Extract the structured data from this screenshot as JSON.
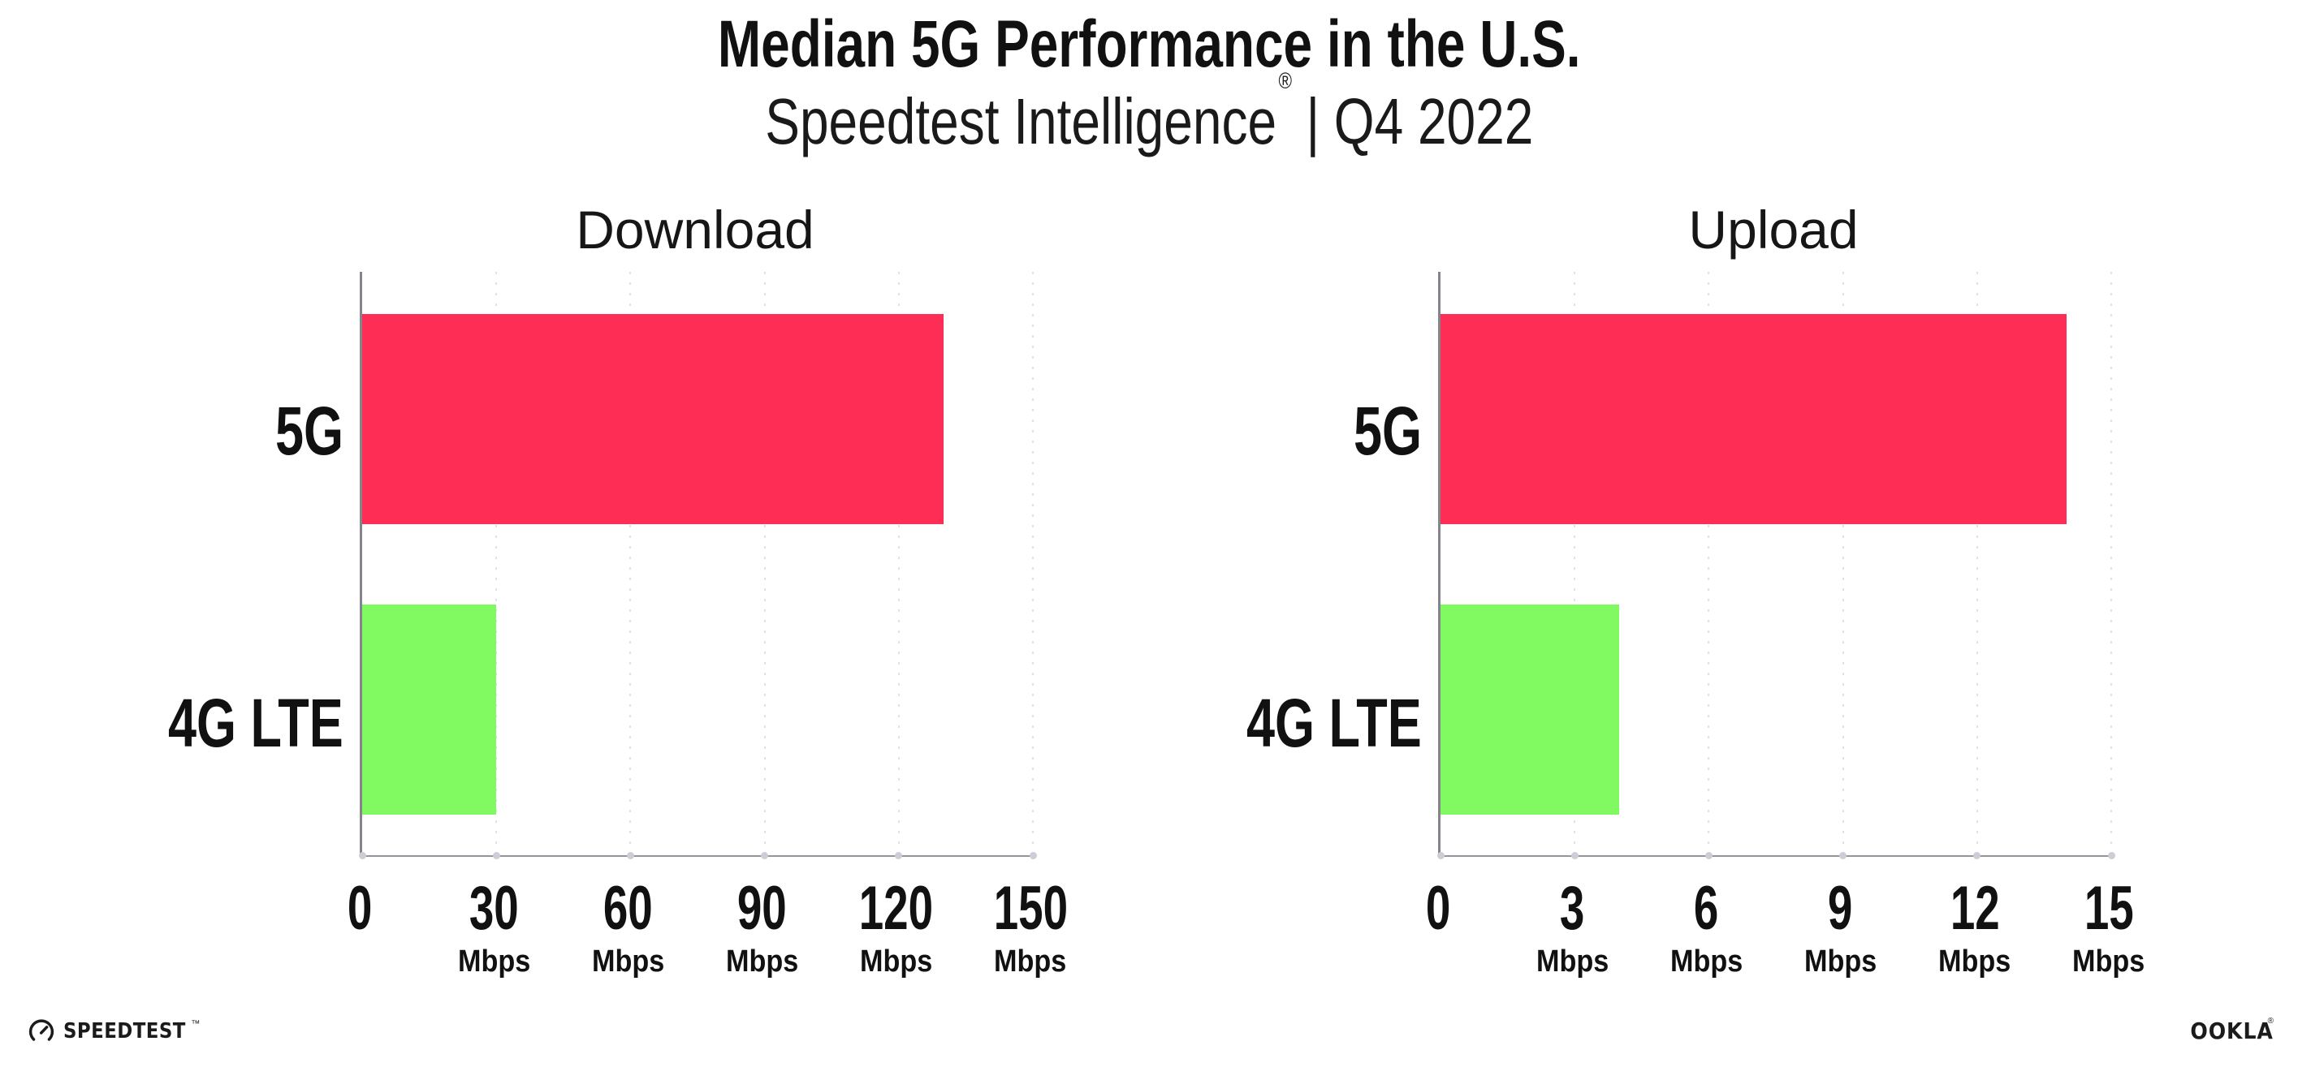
{
  "header": {
    "title": "Median 5G Performance in the U.S.",
    "subtitle_brand": "Speedtest Intelligence",
    "subtitle_reg": "®",
    "subtitle_divider": "|",
    "subtitle_period": "Q4 2022"
  },
  "chart_data": [
    {
      "type": "bar",
      "orientation": "horizontal",
      "title": "Download",
      "categories": [
        "5G",
        "4G LTE"
      ],
      "values": [
        130,
        30
      ],
      "unit": "Mbps",
      "xlim": [
        0,
        150
      ],
      "xticks": [
        0,
        30,
        60,
        90,
        120,
        150
      ],
      "tick_unit_label": "Mbps",
      "bar_colors": [
        "#fe2d55",
        "#81fa62"
      ],
      "grid": "vertical-dotted",
      "legend": "none"
    },
    {
      "type": "bar",
      "orientation": "horizontal",
      "title": "Upload",
      "categories": [
        "5G",
        "4G LTE"
      ],
      "values": [
        14,
        4
      ],
      "unit": "Mbps",
      "xlim": [
        0,
        15
      ],
      "xticks": [
        0,
        3,
        6,
        9,
        12,
        15
      ],
      "tick_unit_label": "Mbps",
      "bar_colors": [
        "#fe2d55",
        "#81fa62"
      ],
      "grid": "vertical-dotted",
      "legend": "none"
    }
  ],
  "footer": {
    "speedtest_wordmark": "SPEEDTEST",
    "speedtest_tm": "™",
    "ookla_wordmark": "OOKLA",
    "ookla_reg": "®"
  },
  "colors": {
    "bar_5g": "#fe2d55",
    "bar_4g_lte": "#81fa62",
    "gridline": "#dfe0e9",
    "y_axis": "#84848c",
    "x_axis": "#94949a",
    "tick_dot": "#cbcdd7",
    "text": "#141414",
    "background": "#ffffff"
  }
}
